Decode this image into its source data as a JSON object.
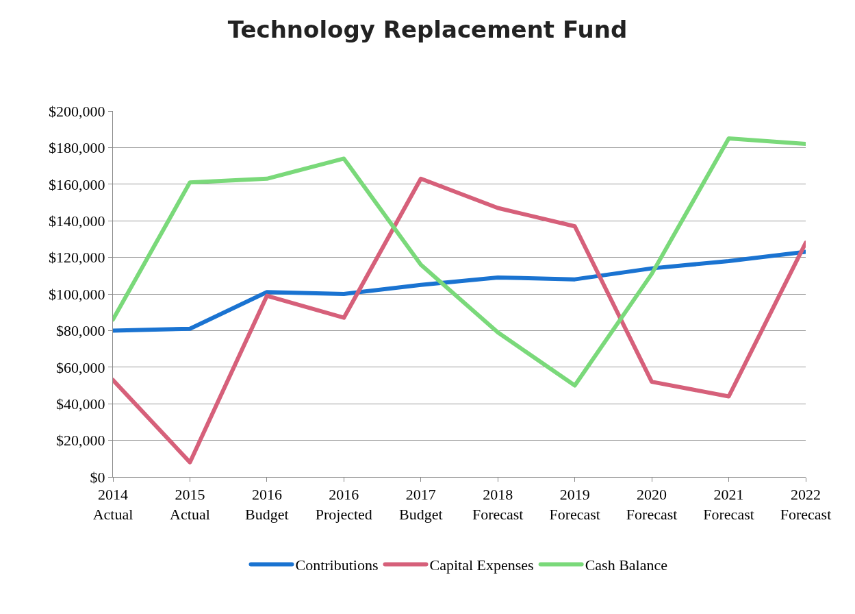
{
  "chart_data": {
    "type": "line",
    "title": "Technology Replacement Fund",
    "categories": [
      "2014\nActual",
      "2015\nActual",
      "2016\nBudget",
      "2016\nProjected",
      "2017\nBudget",
      "2018\nForecast",
      "2019\nForecast",
      "2020\nForecast",
      "2021\nForecast",
      "2022\nForecast"
    ],
    "series": [
      {
        "name": "Contributions",
        "color": "#1a73d1",
        "values": [
          80000,
          81000,
          101000,
          100000,
          105000,
          109000,
          108000,
          114000,
          118000,
          123000
        ]
      },
      {
        "name": "Capital Expenses",
        "color": "#d6607a",
        "values": [
          53000,
          8000,
          99000,
          87000,
          163000,
          147000,
          137000,
          52000,
          44000,
          128000
        ]
      },
      {
        "name": "Cash Balance",
        "color": "#7ad97a",
        "values": [
          86000,
          161000,
          163000,
          174000,
          116000,
          79000,
          50000,
          111000,
          185000,
          182000
        ]
      }
    ],
    "ylim": [
      0,
      200000
    ],
    "yticks": [
      {
        "value": 0,
        "label": "$0"
      },
      {
        "value": 20000,
        "label": "$20,000"
      },
      {
        "value": 40000,
        "label": "$40,000"
      },
      {
        "value": 60000,
        "label": "$60,000"
      },
      {
        "value": 80000,
        "label": "$80,000"
      },
      {
        "value": 100000,
        "label": "$100,000"
      },
      {
        "value": 120000,
        "label": "$120,000"
      },
      {
        "value": 140000,
        "label": "$140,000"
      },
      {
        "value": 160000,
        "label": "$160,000"
      },
      {
        "value": 180000,
        "label": "$180,000"
      },
      {
        "value": 200000,
        "label": "$200,000"
      }
    ],
    "grid": "y",
    "legend": "bottom",
    "marker": "none",
    "line_style": "solid"
  }
}
